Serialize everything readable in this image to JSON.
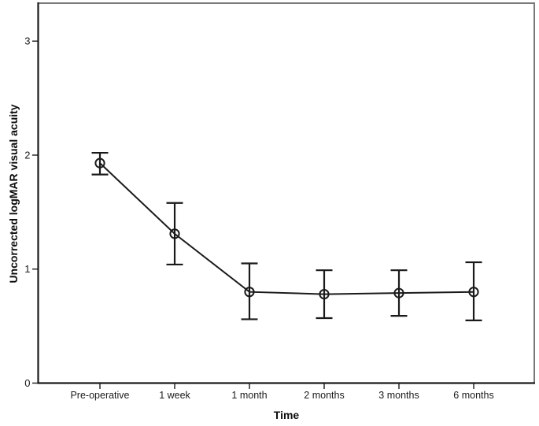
{
  "chart_data": {
    "type": "line",
    "title": "",
    "xlabel": "Time",
    "ylabel": "Uncorrected logMAR visual acuity",
    "categories": [
      "Pre-operative",
      "1 week",
      "1 month",
      "2 months",
      "3 months",
      "6 months"
    ],
    "values": [
      1.93,
      1.31,
      0.8,
      0.78,
      0.79,
      0.8
    ],
    "error_upper": [
      2.02,
      1.58,
      1.05,
      0.99,
      0.99,
      1.06
    ],
    "error_lower": [
      1.83,
      1.04,
      0.56,
      0.57,
      0.59,
      0.55
    ],
    "y_ticks": [
      0,
      1,
      2,
      3
    ],
    "ylim": [
      0,
      3.34
    ],
    "grid": false,
    "legend": "none",
    "marker": "open-circle",
    "error_bars": true,
    "colors": {
      "line": "#1a1a1a",
      "marker": "#1a1a1a",
      "error_bar": "#1a1a1a",
      "axis": "#1a1a1a",
      "frame": "#7a7a7a",
      "text": "#1a1a1a",
      "background": "#ffffff"
    }
  }
}
